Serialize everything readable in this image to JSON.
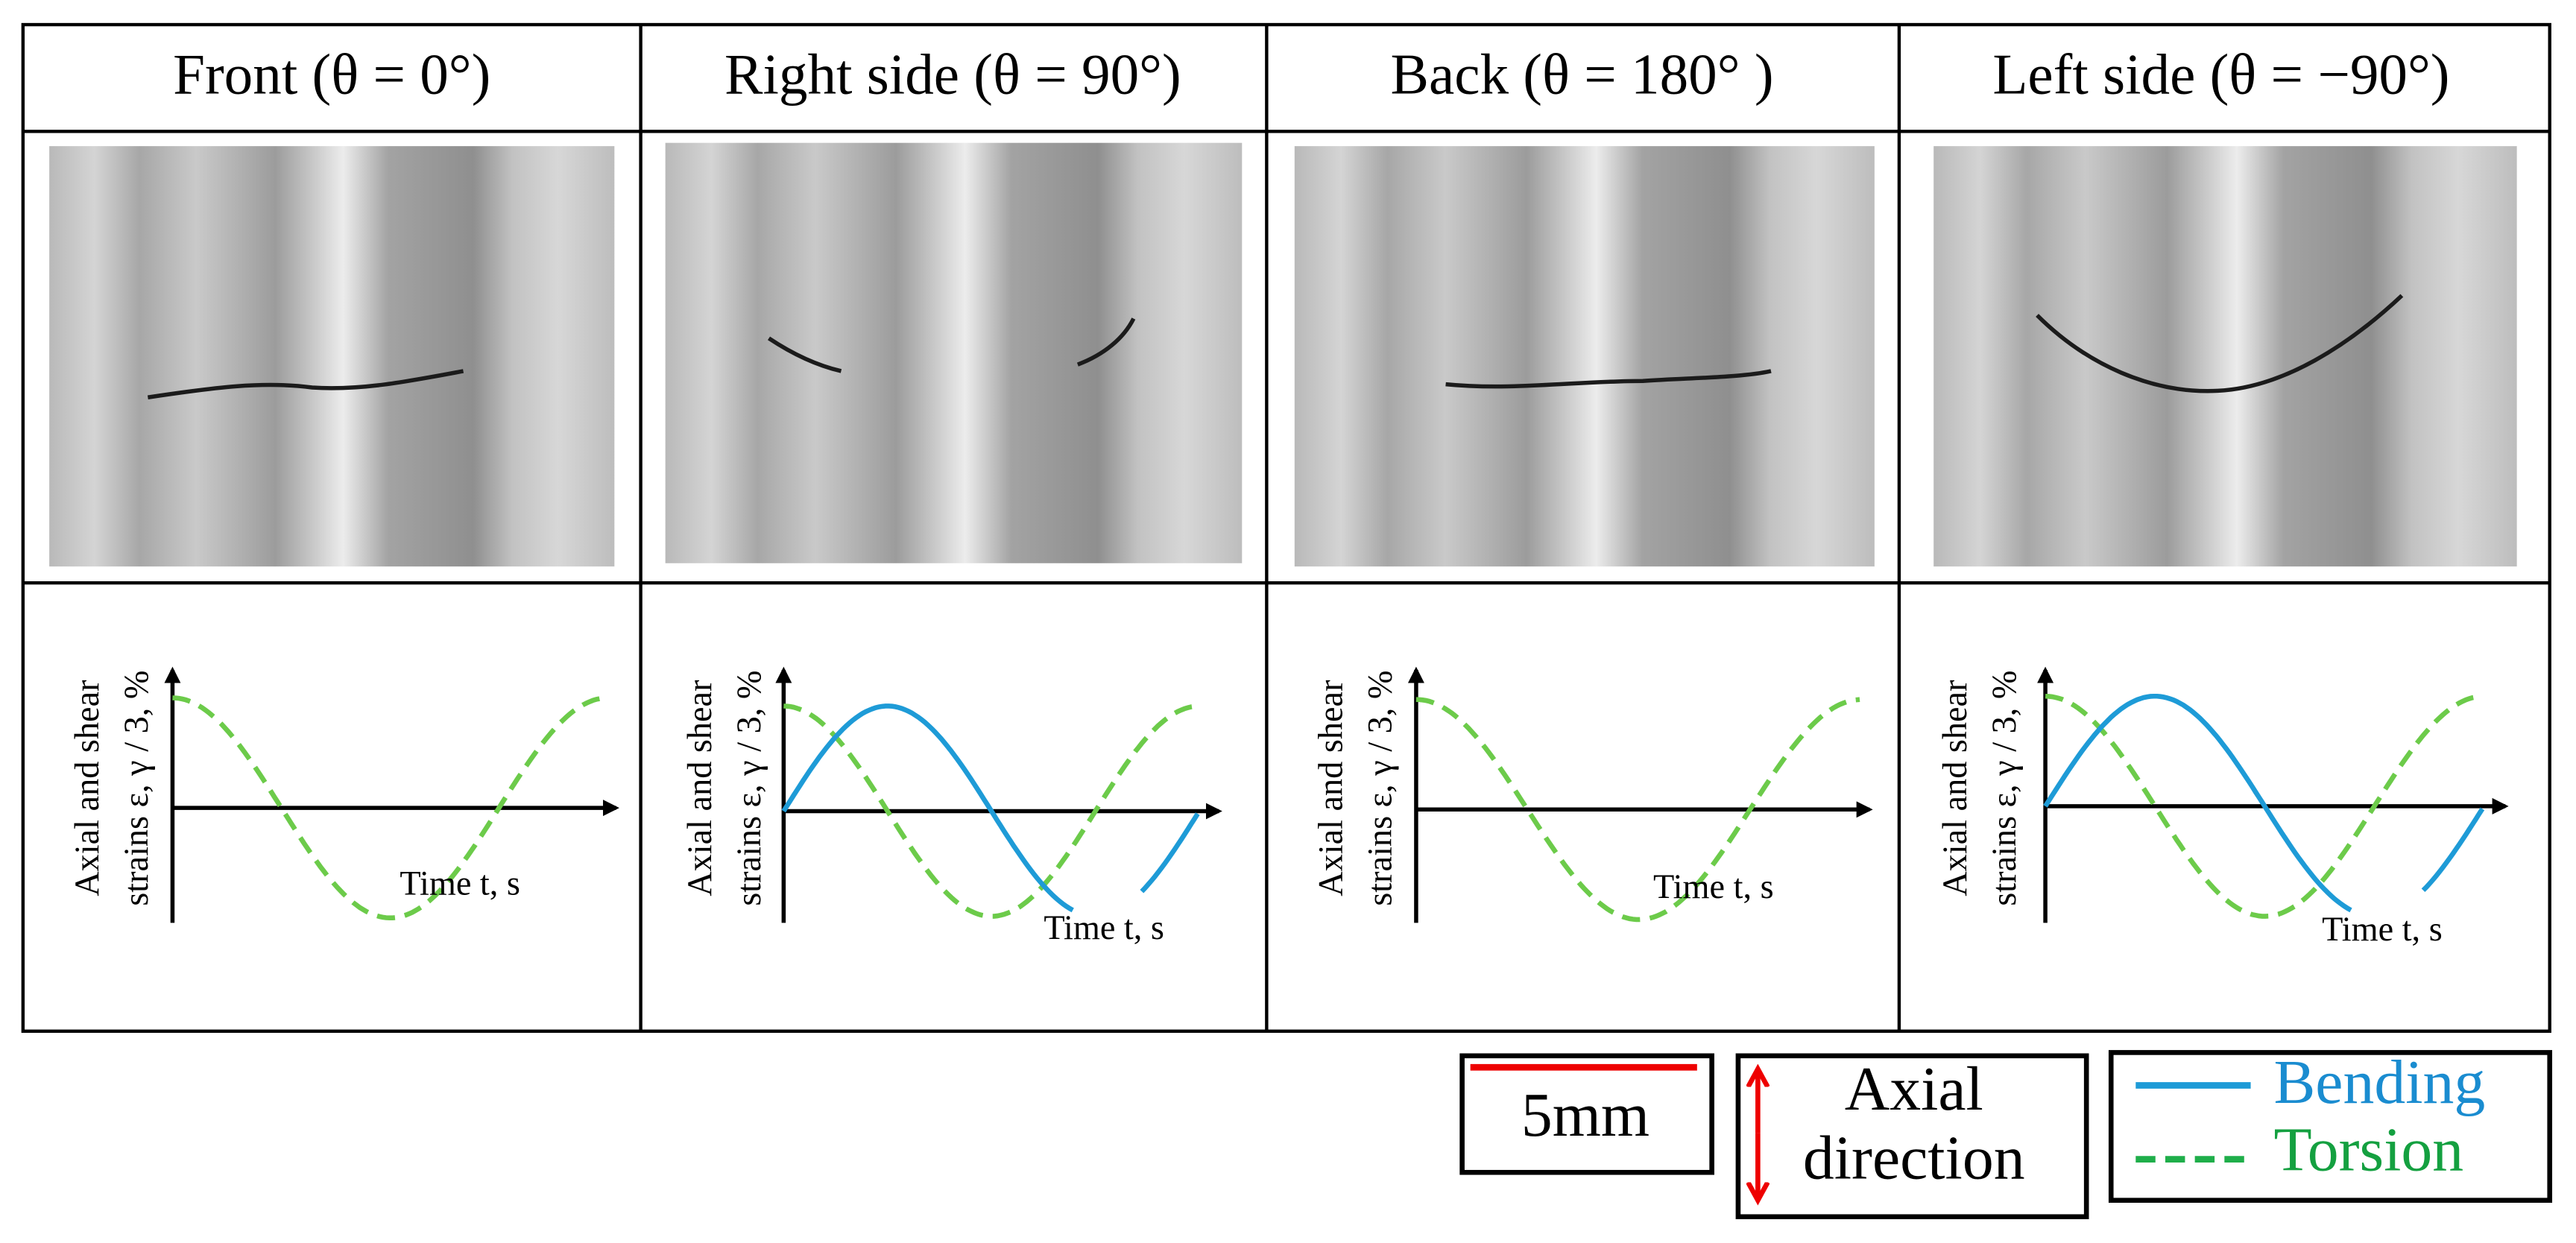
{
  "columns": [
    {
      "title": "Front (θ = 0°)",
      "y_label": [
        "Axial and shear",
        "strains ε, γ / 3,  %"
      ],
      "x_label": "Time t, s"
    },
    {
      "title": "Right side (θ = 90°)",
      "y_label": [
        "Axial and shear",
        "strains ε, γ / 3,  %"
      ],
      "x_label": "Time t, s"
    },
    {
      "title": "Back (θ = 180° )",
      "y_label": [
        "Axial and shear",
        "strains ε, γ / 3,  %"
      ],
      "x_label": "Time t, s"
    },
    {
      "title": "Left side (θ = −90°)",
      "y_label": [
        "Axial and shear",
        "strains ε, γ / 3,  %"
      ],
      "x_label": "Time t, s"
    }
  ],
  "legend": {
    "scale_bar": "5mm",
    "axial": [
      "Axial",
      "direction"
    ],
    "series": [
      "Bending",
      "Torsion"
    ]
  }
}
